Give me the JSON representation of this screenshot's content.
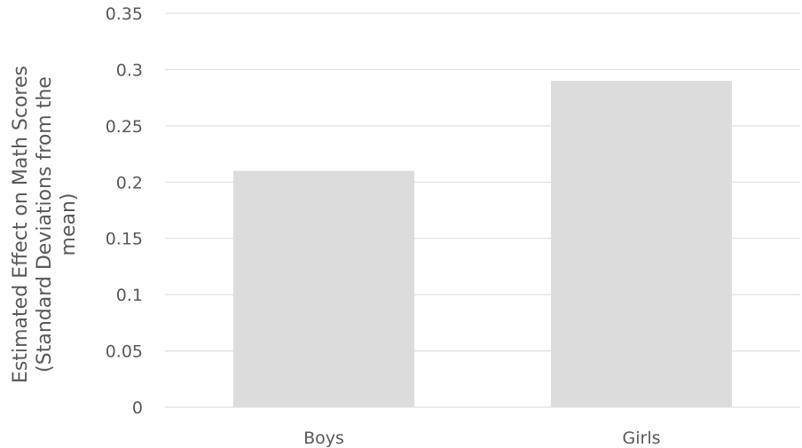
{
  "chart_data": {
    "type": "bar",
    "categories": [
      "Boys",
      "Girls"
    ],
    "values": [
      0.21,
      0.29
    ],
    "ylabel_lines": [
      "Estimated Effect on Math Scores",
      "(Standard Deviations from the",
      "mean)"
    ],
    "ylim": [
      0,
      0.35
    ],
    "yticks": [
      0,
      0.05,
      0.1,
      0.15,
      0.2,
      0.25,
      0.3,
      0.35
    ],
    "ytick_labels": [
      "0",
      "0.05",
      "0.1",
      "0.15",
      "0.2",
      "0.25",
      "0.3",
      "0.35"
    ],
    "grid": true,
    "legend": "none",
    "bar_color": "#dcdcdc",
    "grid_color": "#d9d9d9",
    "text_color": "#595959"
  }
}
